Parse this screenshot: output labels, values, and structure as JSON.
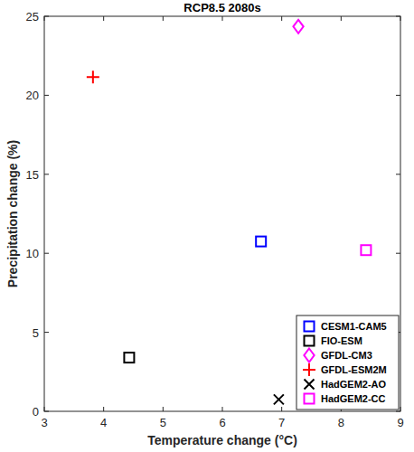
{
  "chart_data": {
    "type": "scatter",
    "title": "RCP8.5 2080s",
    "x_label": "Temperature change (°C)",
    "y_label": "Precipitation change (%)",
    "xlim": [
      3,
      9
    ],
    "xticks": [
      3,
      4,
      5,
      6,
      7,
      8,
      9
    ],
    "ylim": [
      0,
      25
    ],
    "yticks": [
      0,
      5,
      10,
      15,
      20,
      25
    ],
    "legend": "lower right",
    "grid": false,
    "series": [
      {
        "name": "CESM1-CAM5",
        "color": "#0000ff",
        "marker": "square",
        "x": [
          6.65
        ],
        "values": [
          10.75
        ]
      },
      {
        "name": "FIO-ESM",
        "color": "#000000",
        "marker": "square",
        "x": [
          4.43
        ],
        "values": [
          3.4
        ]
      },
      {
        "name": "GFDL-CM3",
        "color": "#ff00ff",
        "marker": "diamond",
        "x": [
          7.28
        ],
        "values": [
          24.35
        ]
      },
      {
        "name": "GFDL-ESM2M",
        "color": "#ff0000",
        "marker": "plus",
        "x": [
          3.82
        ],
        "values": [
          21.15
        ]
      },
      {
        "name": "HadGEM2-AO",
        "color": "#000000",
        "marker": "x",
        "x": [
          6.95
        ],
        "values": [
          0.75
        ]
      },
      {
        "name": "HadGEM2-CC",
        "color": "#ff00ff",
        "marker": "square",
        "x": [
          8.42
        ],
        "values": [
          10.2
        ]
      }
    ]
  }
}
